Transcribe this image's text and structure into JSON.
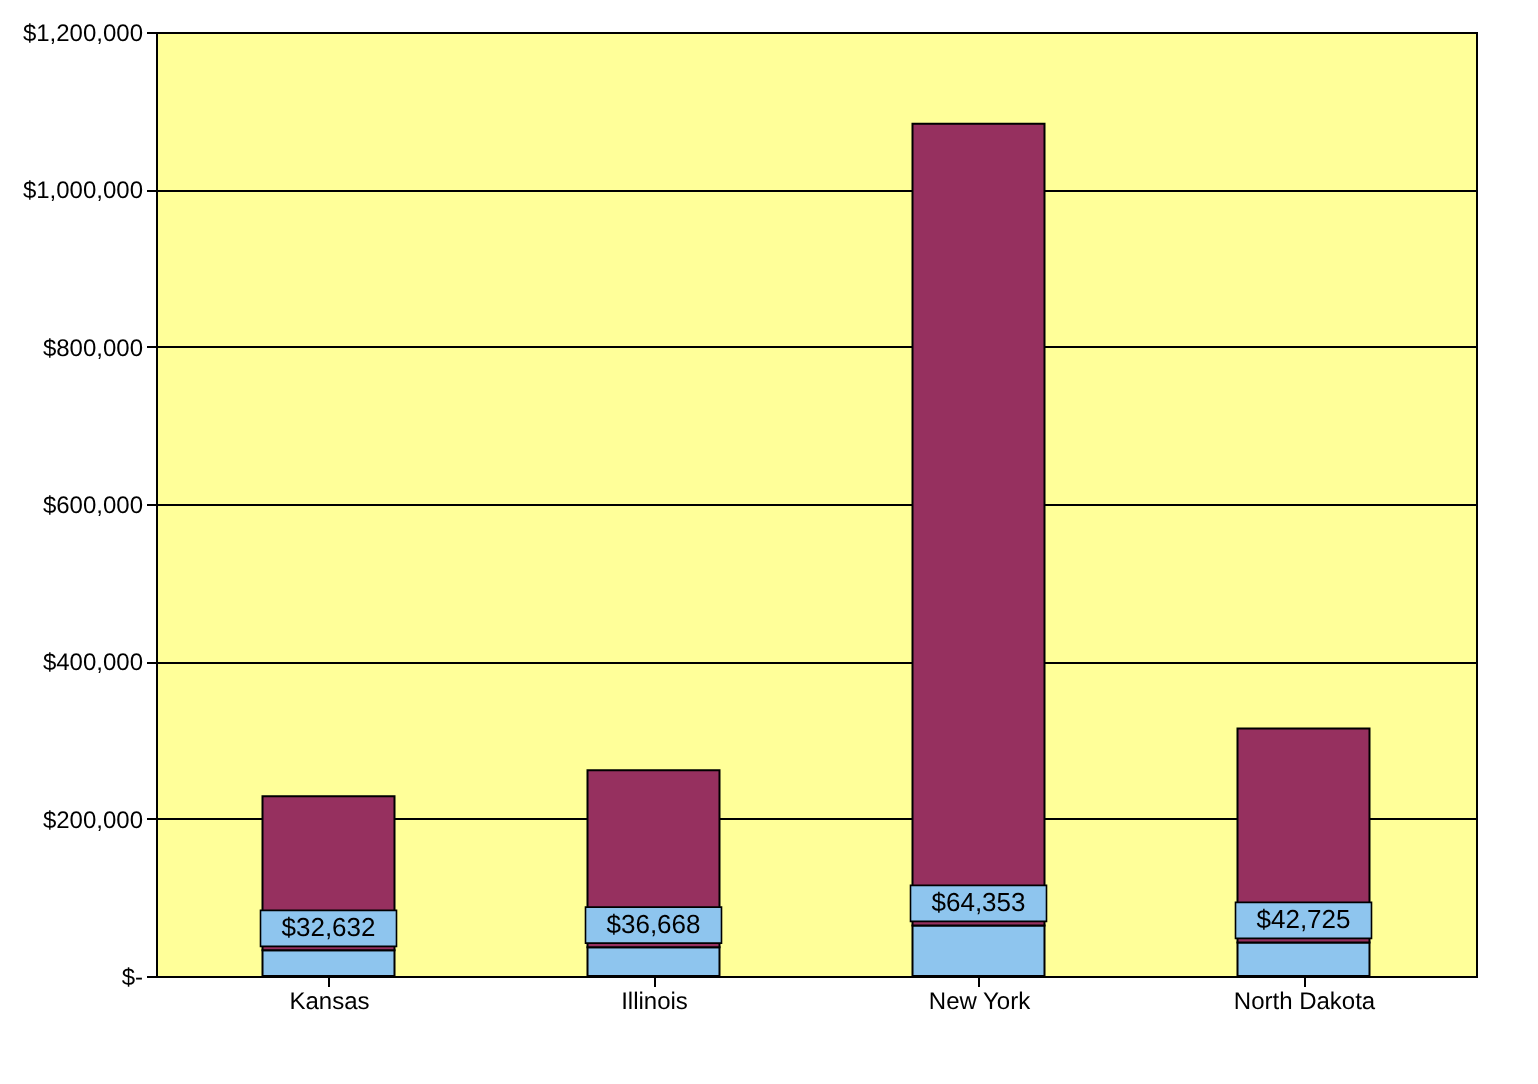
{
  "chart_data": {
    "type": "bar",
    "stacked": true,
    "categories": [
      "Kansas",
      "Illinois",
      "New York",
      "North Dakota"
    ],
    "series": [
      {
        "color": "#8ec5ee",
        "values": [
          32632,
          36668,
          64353,
          42725
        ],
        "value_labels": [
          "$32,632",
          "$36,668",
          "$64,353",
          "$42,725"
        ]
      },
      {
        "color": "#96305f",
        "values": [
          196000,
          225000,
          1019000,
          272000
        ]
      }
    ],
    "ylim": [
      0,
      1200000
    ],
    "yticks": [
      {
        "value": 0,
        "label": "$-"
      },
      {
        "value": 200000,
        "label": "$200,000"
      },
      {
        "value": 400000,
        "label": "$400,000"
      },
      {
        "value": 600000,
        "label": "$600,000"
      },
      {
        "value": 800000,
        "label": "$800,000"
      },
      {
        "value": 1000000,
        "label": "$1,000,000"
      },
      {
        "value": 1200000,
        "label": "$1,200,000"
      }
    ],
    "grid": "y"
  }
}
